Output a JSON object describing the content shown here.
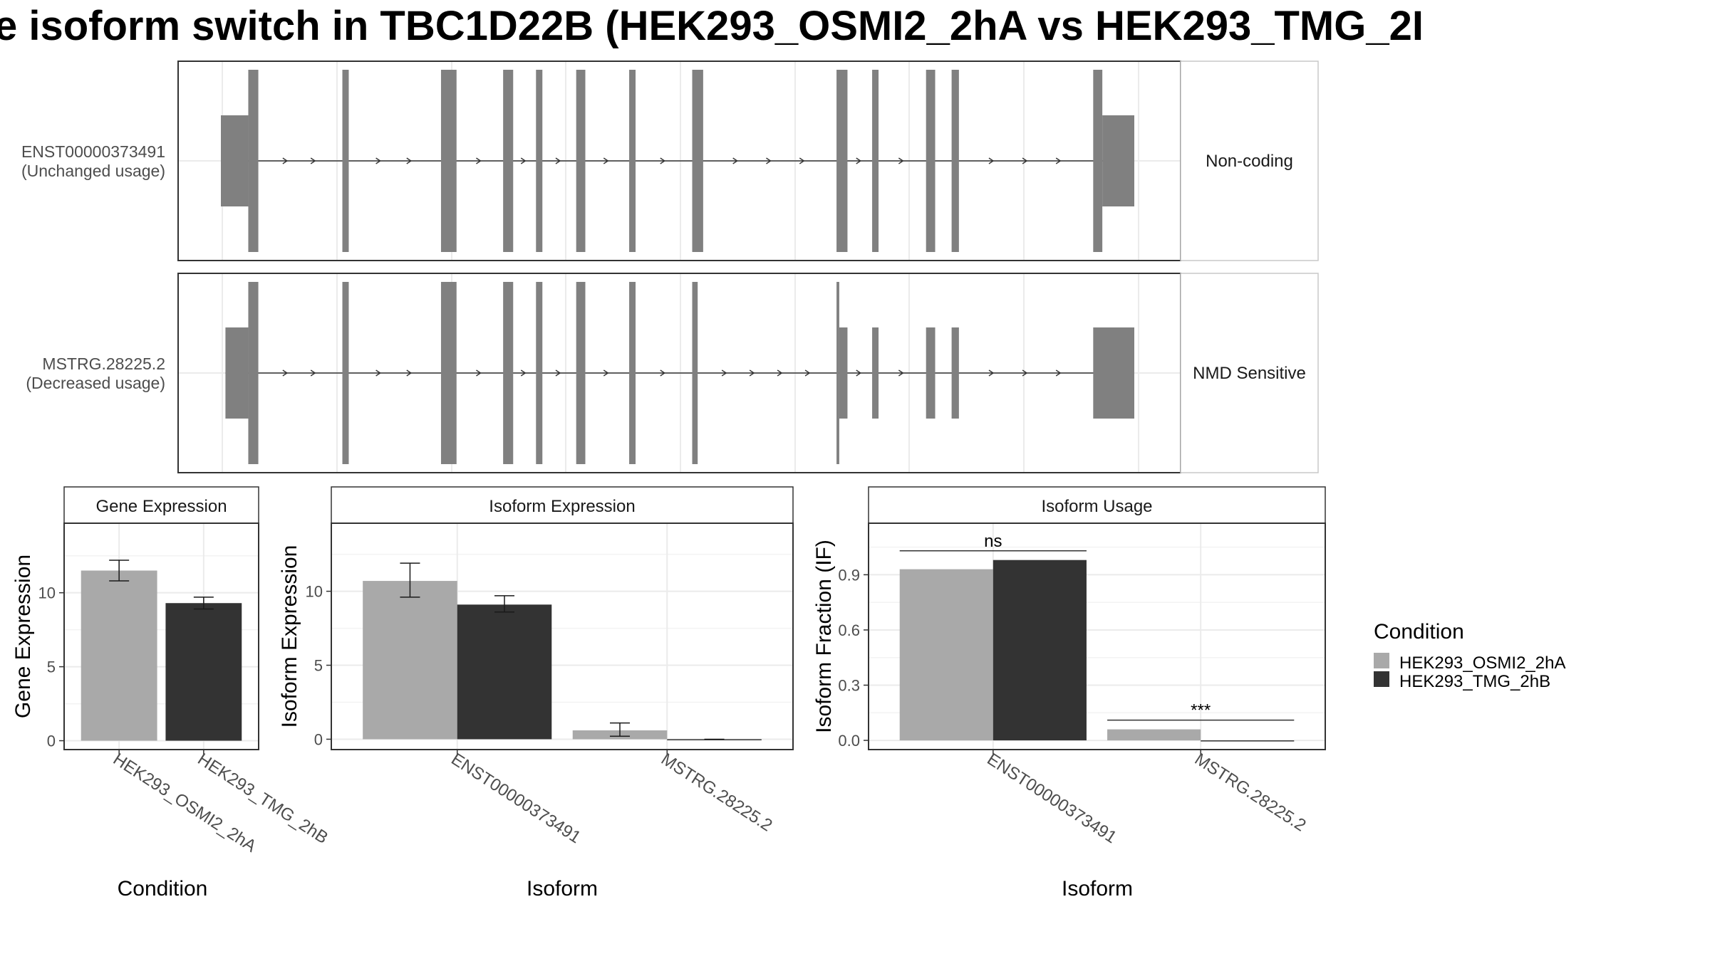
{
  "title": "e isoform switch in TBC1D22B (HEK293_OSMI2_2hA vs HEK293_TMG_2I",
  "colors": {
    "condition_a": "#a9a9a9",
    "condition_b": "#333333",
    "exon": "#808080",
    "panel_border": "#333333",
    "grid": "#ebebeb"
  },
  "tracks": [
    {
      "isoform": "ENST00000373491",
      "usage": "(Unchanged usage)",
      "annotation": "Non-coding",
      "exons": [
        {
          "start": 0,
          "end": 0.03,
          "tall": false
        },
        {
          "start": 0.03,
          "end": 0.041,
          "tall": true
        },
        {
          "start": 0.133,
          "end": 0.14,
          "tall": true
        },
        {
          "start": 0.241,
          "end": 0.258,
          "tall": true
        },
        {
          "start": 0.309,
          "end": 0.32,
          "tall": true
        },
        {
          "start": 0.345,
          "end": 0.352,
          "tall": true
        },
        {
          "start": 0.389,
          "end": 0.399,
          "tall": true
        },
        {
          "start": 0.447,
          "end": 0.454,
          "tall": true
        },
        {
          "start": 0.516,
          "end": 0.528,
          "tall": true
        },
        {
          "start": 0.674,
          "end": 0.686,
          "tall": true
        },
        {
          "start": 0.713,
          "end": 0.72,
          "tall": true
        },
        {
          "start": 0.772,
          "end": 0.782,
          "tall": true
        },
        {
          "start": 0.8,
          "end": 0.808,
          "tall": true
        },
        {
          "start": 0.955,
          "end": 0.965,
          "tall": true
        },
        {
          "start": 0.965,
          "end": 1.0,
          "tall": false
        }
      ]
    },
    {
      "isoform": "MSTRG.28225.2",
      "usage": "(Decreased usage)",
      "annotation": "NMD Sensitive",
      "exons": [
        {
          "start": 0.005,
          "end": 0.03,
          "tall": false
        },
        {
          "start": 0.03,
          "end": 0.041,
          "tall": true
        },
        {
          "start": 0.133,
          "end": 0.14,
          "tall": true
        },
        {
          "start": 0.241,
          "end": 0.258,
          "tall": true
        },
        {
          "start": 0.309,
          "end": 0.32,
          "tall": true
        },
        {
          "start": 0.345,
          "end": 0.352,
          "tall": true
        },
        {
          "start": 0.389,
          "end": 0.399,
          "tall": true
        },
        {
          "start": 0.447,
          "end": 0.454,
          "tall": true
        },
        {
          "start": 0.516,
          "end": 0.522,
          "tall": true
        },
        {
          "start": 0.674,
          "end": 0.677,
          "tall": true
        },
        {
          "start": 0.677,
          "end": 0.686,
          "tall": false
        },
        {
          "start": 0.713,
          "end": 0.72,
          "tall": false
        },
        {
          "start": 0.772,
          "end": 0.782,
          "tall": false
        },
        {
          "start": 0.8,
          "end": 0.808,
          "tall": false
        },
        {
          "start": 0.955,
          "end": 1.0,
          "tall": false
        }
      ]
    }
  ],
  "legend": {
    "title": "Condition",
    "items": [
      "HEK293_OSMI2_2hA",
      "HEK293_TMG_2hB"
    ]
  },
  "chart_data": [
    {
      "type": "bar",
      "title": "Gene Expression",
      "xlabel": "Condition",
      "ylabel": "Gene Expression",
      "categories": [
        "HEK293_OSMI2_2hA",
        "HEK293_TMG_2hB"
      ],
      "values": [
        11.5,
        9.3
      ],
      "errors": [
        [
          10.8,
          12.2
        ],
        [
          8.9,
          9.7
        ]
      ],
      "ylim": [
        -0.6,
        14.7
      ],
      "yticks": [
        "0",
        "5",
        "10"
      ],
      "ytick_values": [
        0,
        5,
        10
      ]
    },
    {
      "type": "bar",
      "title": "Isoform Expression",
      "xlabel": "Isoform",
      "ylabel": "Isoform Expression",
      "categories": [
        "ENST00000373491",
        "MSTRG.28225.2"
      ],
      "series": [
        {
          "values": [
            10.7,
            0.6
          ],
          "errors": [
            [
              9.6,
              11.9
            ],
            [
              0.2,
              1.1
            ]
          ]
        },
        {
          "values": [
            9.1,
            0.0
          ],
          "errors": [
            [
              8.6,
              9.7
            ],
            [
              0.0,
              0.0
            ]
          ]
        }
      ],
      "ylim": [
        -0.7,
        14.6
      ],
      "yticks": [
        "0",
        "5",
        "10"
      ],
      "ytick_values": [
        0,
        5,
        10
      ]
    },
    {
      "type": "bar",
      "title": "Isoform Usage",
      "xlabel": "Isoform",
      "ylabel": "Isoform Fraction (IF)",
      "categories": [
        "ENST00000373491",
        "MSTRG.28225.2"
      ],
      "series": [
        {
          "values": [
            0.93,
            0.06
          ]
        },
        {
          "values": [
            0.98,
            0.0
          ]
        }
      ],
      "significance": [
        "ns",
        "***"
      ],
      "sig_levels": [
        1.03,
        0.11
      ],
      "ylim": [
        -0.05,
        1.18
      ],
      "yticks": [
        "0.0",
        "0.3",
        "0.6",
        "0.9"
      ],
      "ytick_values": [
        0,
        0.3,
        0.6,
        0.9
      ]
    }
  ]
}
